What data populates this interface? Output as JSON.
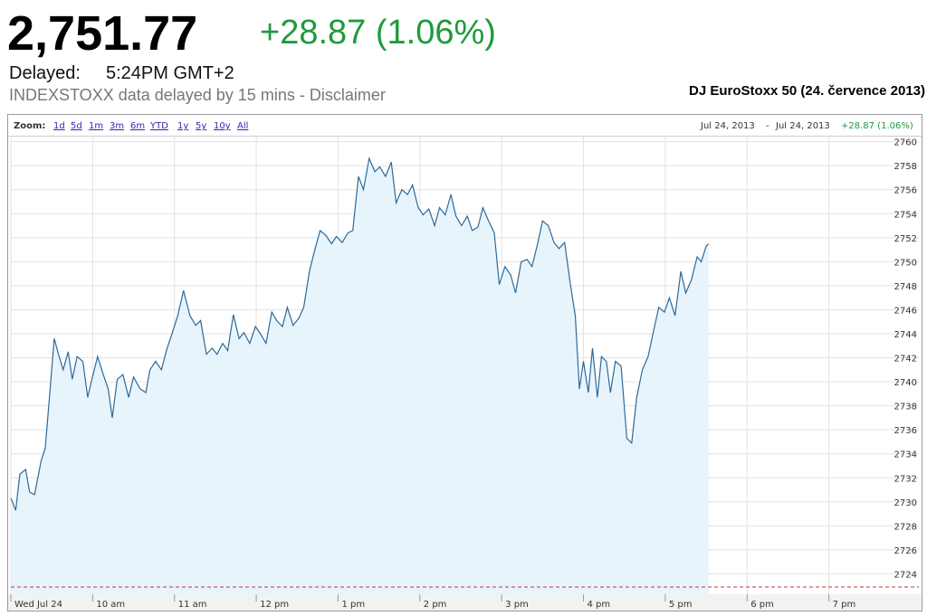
{
  "header": {
    "price": "2,751.77",
    "change": "+28.87 (1.06%)",
    "delayed_label": "Delayed:",
    "delayed_time": "5:24PM GMT+2",
    "source_note": "INDEXSTOXX data delayed by 15 mins - Disclaimer"
  },
  "chart_data": {
    "type": "area",
    "title": "DJ EuroStoxx 50 (24. července 2013)",
    "zoom": {
      "label": "Zoom:",
      "options": [
        "1d",
        "5d",
        "1m",
        "3m",
        "6m",
        "YTD",
        "1y",
        "5y",
        "10y",
        "All"
      ]
    },
    "range": {
      "start": "Jul 24, 2013",
      "separator": "-",
      "end": "Jul 24, 2013",
      "change": "+28.87 (1.06%)"
    },
    "color": "#2e6a99",
    "fill_color": "#e8f4fc",
    "grid": true,
    "previous_close": 2722.9,
    "previous_close_color": "#c0392b",
    "xlim": [
      9,
      20.1
    ],
    "ylim": [
      2722.3,
      2760.5
    ],
    "xticks": [
      {
        "value": 9,
        "label": "Wed Jul 24"
      },
      {
        "value": 10,
        "label": "10 am"
      },
      {
        "value": 11,
        "label": "11 am"
      },
      {
        "value": 12,
        "label": "12 pm"
      },
      {
        "value": 13,
        "label": "1 pm"
      },
      {
        "value": 14,
        "label": "2 pm"
      },
      {
        "value": 15,
        "label": "3 pm"
      },
      {
        "value": 16,
        "label": "4 pm"
      },
      {
        "value": 17,
        "label": "5 pm"
      },
      {
        "value": 18,
        "label": "6 pm"
      },
      {
        "value": 19,
        "label": "7 pm"
      }
    ],
    "yticks": [
      2724,
      2726,
      2728,
      2730,
      2732,
      2734,
      2736,
      2738,
      2740,
      2742,
      2744,
      2746,
      2748,
      2750,
      2752,
      2754,
      2756,
      2758,
      2760
    ],
    "x": [
      9.0,
      9.06,
      9.11,
      9.18,
      9.23,
      9.29,
      9.37,
      9.42,
      9.48,
      9.53,
      9.59,
      9.64,
      9.7,
      9.75,
      9.81,
      9.88,
      9.94,
      9.99,
      10.06,
      10.13,
      10.19,
      10.24,
      10.3,
      10.37,
      10.44,
      10.5,
      10.58,
      10.65,
      10.7,
      10.77,
      10.84,
      10.91,
      10.97,
      11.04,
      11.11,
      11.19,
      11.26,
      11.32,
      11.39,
      11.46,
      11.52,
      11.59,
      11.65,
      11.72,
      11.79,
      11.85,
      11.92,
      11.99,
      12.05,
      12.12,
      12.19,
      12.25,
      12.32,
      12.38,
      12.45,
      12.52,
      12.58,
      12.65,
      12.72,
      12.78,
      12.85,
      12.92,
      12.98,
      13.05,
      13.12,
      13.18,
      13.25,
      13.31,
      13.38,
      13.45,
      13.51,
      13.58,
      13.65,
      13.71,
      13.78,
      13.85,
      13.91,
      13.98,
      14.04,
      14.11,
      14.18,
      14.24,
      14.31,
      14.38,
      14.44,
      14.51,
      14.58,
      14.64,
      14.71,
      14.77,
      14.84,
      14.91,
      14.97,
      15.04,
      15.11,
      15.17,
      15.24,
      15.31,
      15.37,
      15.44,
      15.5,
      15.57,
      15.64,
      15.7,
      15.77,
      15.84,
      15.9,
      15.95,
      16.0,
      16.06,
      16.11,
      16.17,
      16.22,
      16.28,
      16.33,
      16.39,
      16.46,
      16.53,
      16.59,
      16.65,
      16.72,
      16.79,
      16.85,
      16.92,
      16.99,
      17.05,
      17.12,
      17.19,
      17.25,
      17.32,
      17.39,
      17.44,
      17.5,
      17.53
    ],
    "values": [
      2730.3,
      2729.3,
      2732.3,
      2732.7,
      2730.8,
      2730.6,
      2733.4,
      2734.5,
      2739.4,
      2743.6,
      2742.1,
      2741.0,
      2742.5,
      2740.2,
      2742.1,
      2741.7,
      2738.7,
      2740.2,
      2742.1,
      2740.6,
      2739.4,
      2737.0,
      2740.2,
      2740.6,
      2738.7,
      2740.4,
      2739.4,
      2739.1,
      2741.0,
      2741.7,
      2741.0,
      2742.8,
      2744.0,
      2745.5,
      2747.6,
      2745.5,
      2744.7,
      2745.1,
      2742.3,
      2742.8,
      2742.3,
      2743.2,
      2742.6,
      2745.6,
      2743.6,
      2744.1,
      2743.2,
      2744.6,
      2744.0,
      2743.2,
      2745.8,
      2745.1,
      2744.6,
      2746.2,
      2744.7,
      2745.3,
      2746.2,
      2749.2,
      2751.1,
      2752.6,
      2752.2,
      2751.5,
      2752.1,
      2751.6,
      2752.4,
      2752.6,
      2757.1,
      2756.0,
      2758.6,
      2757.5,
      2757.9,
      2757.1,
      2758.3,
      2754.9,
      2756.0,
      2755.6,
      2756.4,
      2754.5,
      2753.9,
      2754.4,
      2753.0,
      2754.5,
      2753.9,
      2755.6,
      2753.8,
      2753.0,
      2753.8,
      2752.6,
      2752.9,
      2754.5,
      2753.4,
      2752.4,
      2748.1,
      2749.6,
      2748.9,
      2747.4,
      2750.0,
      2750.2,
      2749.6,
      2751.5,
      2753.4,
      2753.0,
      2751.6,
      2751.1,
      2751.6,
      2748.1,
      2745.5,
      2739.4,
      2741.7,
      2739.1,
      2742.8,
      2738.7,
      2742.1,
      2741.7,
      2739.1,
      2741.7,
      2741.3,
      2735.3,
      2734.9,
      2738.7,
      2741.0,
      2742.1,
      2744.0,
      2746.2,
      2745.8,
      2747.0,
      2745.5,
      2749.2,
      2747.4,
      2748.5,
      2750.4,
      2750.0,
      2751.3,
      2751.5
    ]
  }
}
